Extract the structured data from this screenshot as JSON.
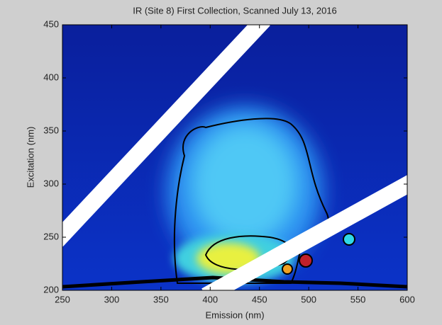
{
  "chart_data": {
    "type": "heatmap",
    "title": "IR (Site 8) First Collection, Scanned July 13, 2016",
    "x_label": "Emission (nm)",
    "y_label": "Excitation (nm)",
    "xlim": [
      250,
      600
    ],
    "xticks": [
      250,
      300,
      350,
      400,
      450,
      500,
      550,
      600
    ],
    "ylim": [
      200,
      450
    ],
    "yticks": [
      200,
      250,
      300,
      350,
      400,
      450
    ]
  }
}
